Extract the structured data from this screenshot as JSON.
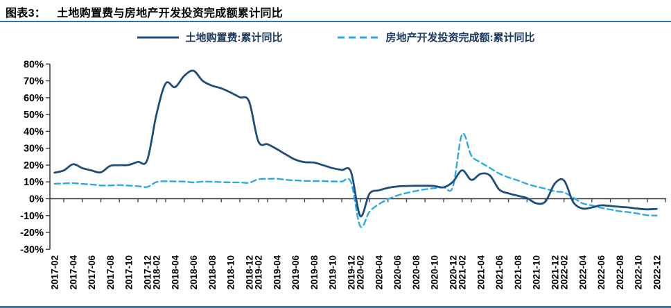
{
  "figure": {
    "tag_label": "图表3：",
    "title": "土地购置费与房地产开发投资完成额累计同比",
    "accent_color": "#2e75b6",
    "axis_color": "#333333"
  },
  "legend": [
    {
      "label": "土地购置费:累计同比",
      "swatch": "solid-line",
      "color": "#1d4d7d"
    },
    {
      "label": "房地产开发投资完成额:累计同比",
      "swatch": "dashed-line",
      "color": "#2aabe2"
    }
  ],
  "chart_data": {
    "type": "line",
    "title": "土地购置费与房地产开发投资完成额累计同比",
    "xlabel": "",
    "ylabel": "",
    "ylim": [
      -30,
      80
    ],
    "grid": false,
    "legend_position": "top",
    "y_tick_labels": [
      "80%",
      "70%",
      "60%",
      "50%",
      "40%",
      "30%",
      "20%",
      "10%",
      "0%",
      "-10%",
      "-20%",
      "-30%"
    ],
    "x": [
      "2017-02",
      "2017-03",
      "2017-04",
      "2017-05",
      "2017-06",
      "2017-07",
      "2017-08",
      "2017-09",
      "2017-10",
      "2017-11",
      "2017-12",
      "2018-02",
      "2018-03",
      "2018-04",
      "2018-05",
      "2018-06",
      "2018-07",
      "2018-08",
      "2018-09",
      "2018-10",
      "2018-11",
      "2018-12",
      "2019-02",
      "2019-03",
      "2019-04",
      "2019-05",
      "2019-06",
      "2019-07",
      "2019-08",
      "2019-09",
      "2019-10",
      "2019-11",
      "2019-12",
      "2020-02",
      "2020-03",
      "2020-04",
      "2020-05",
      "2020-06",
      "2020-07",
      "2020-08",
      "2020-09",
      "2020-10",
      "2020-11",
      "2020-12",
      "2021-02",
      "2021-03",
      "2021-04",
      "2021-05",
      "2021-06",
      "2021-07",
      "2021-08",
      "2021-09",
      "2021-10",
      "2021-11",
      "2021-12",
      "2022-02",
      "2022-03",
      "2022-04",
      "2022-05",
      "2022-06",
      "2022-07",
      "2022-08",
      "2022-09",
      "2022-10",
      "2022-11",
      "2022-12"
    ],
    "x_tick_labels": [
      "2017-02",
      "2017-04",
      "2017-06",
      "2017-08",
      "2017-10",
      "2017-12",
      "2018-02",
      "2018-04",
      "2018-06",
      "2018-08",
      "2018-10",
      "2018-12",
      "2019-02",
      "2019-04",
      "2019-06",
      "2019-08",
      "2019-10",
      "2019-12",
      "2020-02",
      "2020-04",
      "2020-06",
      "2020-08",
      "2020-10",
      "2020-12",
      "2021-02",
      "2021-04",
      "2021-06",
      "2021-08",
      "2021-10",
      "2021-12",
      "2022-02",
      "2022-04",
      "2022-06",
      "2022-08",
      "2022-10",
      "2022-12"
    ],
    "series": [
      {
        "name": "土地购置费:累计同比",
        "color": "#1d4d7d",
        "dash": false,
        "values": [
          15.5,
          16.8,
          20.5,
          18.2,
          16.8,
          15.7,
          19.5,
          19.9,
          20.1,
          21.9,
          22.9,
          50.0,
          68.5,
          66.3,
          73.0,
          76.0,
          70.0,
          67.2,
          65.6,
          63.1,
          60.3,
          57.8,
          34.1,
          32.4,
          29.5,
          26.2,
          23.2,
          21.7,
          21.5,
          19.9,
          18.2,
          17.1,
          16.0,
          -10.2,
          3.0,
          5.0,
          6.5,
          7.3,
          7.6,
          7.7,
          7.7,
          7.6,
          6.8,
          10.0,
          16.9,
          11.2,
          14.8,
          13.8,
          5.5,
          3.2,
          1.8,
          0.4,
          -2.7,
          -1.6,
          9.0,
          10.8,
          -2.0,
          -5.8,
          -5.2,
          -3.9,
          -4.3,
          -4.8,
          -5.2,
          -5.9,
          -6.3,
          -6.0
        ]
      },
      {
        "name": "房地产开发投资完成额:累计同比",
        "color": "#2aabe2",
        "dash": true,
        "values": [
          8.9,
          9.1,
          9.3,
          8.8,
          8.5,
          7.9,
          7.9,
          8.1,
          7.8,
          7.5,
          7.0,
          9.9,
          10.4,
          10.3,
          10.2,
          9.7,
          10.2,
          10.1,
          9.9,
          9.7,
          9.7,
          9.5,
          11.6,
          11.8,
          11.9,
          11.2,
          10.9,
          10.6,
          10.5,
          10.5,
          10.3,
          10.2,
          9.9,
          -16.3,
          -7.7,
          -3.3,
          -0.3,
          1.9,
          3.4,
          4.6,
          5.6,
          6.3,
          6.8,
          7.0,
          38.3,
          25.6,
          21.6,
          18.3,
          15.0,
          12.7,
          10.9,
          8.8,
          7.2,
          6.0,
          4.4,
          3.7,
          0.7,
          -2.7,
          -4.0,
          -5.4,
          -6.4,
          -7.4,
          -8.0,
          -8.8,
          -9.8,
          -10.0
        ]
      }
    ]
  }
}
